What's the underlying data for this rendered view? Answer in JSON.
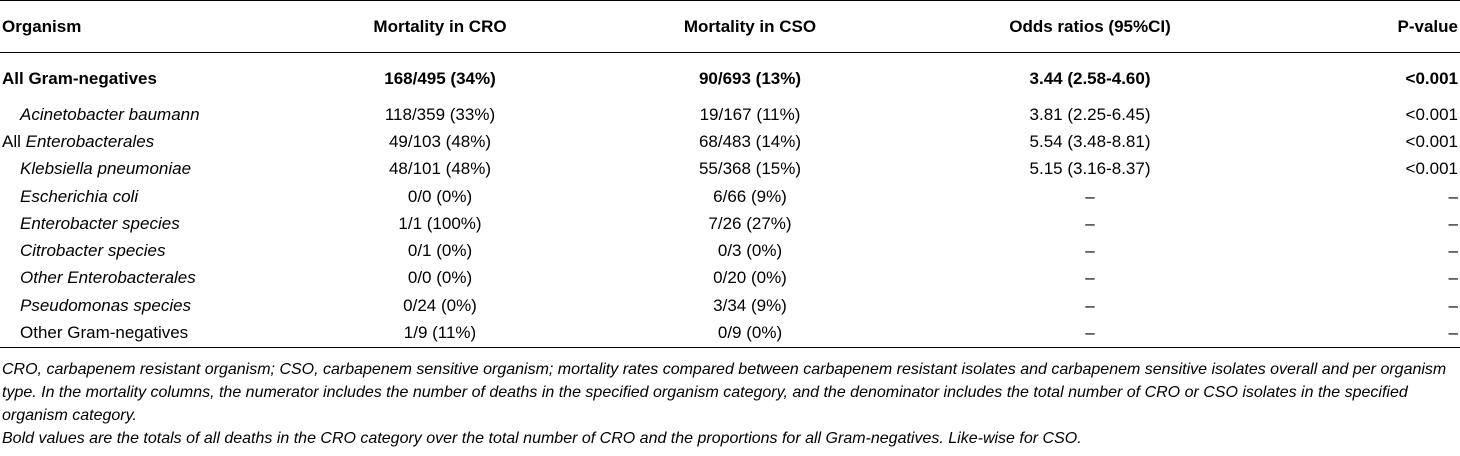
{
  "headers": [
    "Organism",
    "Mortality in CRO",
    "Mortality in CSO",
    "Odds ratios (95%CI)",
    "P-value"
  ],
  "rows": [
    {
      "pre": "",
      "organism": "All Gram-negatives",
      "cro": "168/495 (34%)",
      "cso": "90/693 (13%)",
      "or": "3.44 (2.58-4.60)",
      "p": "<0.001"
    },
    {
      "pre": "",
      "organism": "Acinetobacter baumann",
      "cro": "118/359 (33%)",
      "cso": "19/167 (11%)",
      "or": "3.81 (2.25-6.45)",
      "p": "<0.001"
    },
    {
      "pre": "All ",
      "organism": "Enterobacterales",
      "cro": "49/103 (48%)",
      "cso": "68/483 (14%)",
      "or": "5.54 (3.48-8.81)",
      "p": "<0.001"
    },
    {
      "pre": "",
      "organism": "Klebsiella pneumoniae",
      "cro": "48/101 (48%)",
      "cso": "55/368 (15%)",
      "or": "5.15 (3.16-8.37)",
      "p": "<0.001"
    },
    {
      "pre": "",
      "organism": "Escherichia coli",
      "cro": "0/0 (0%)",
      "cso": "6/66 (9%)",
      "or": "–",
      "p": "–"
    },
    {
      "pre": "",
      "organism": "Enterobacter species",
      "cro": "1/1 (100%)",
      "cso": "7/26 (27%)",
      "or": "–",
      "p": "–"
    },
    {
      "pre": "",
      "organism": "Citrobacter species",
      "cro": "0/1 (0%)",
      "cso": "0/3 (0%)",
      "or": "–",
      "p": "–"
    },
    {
      "pre": "",
      "organism": "Other Enterobacterales",
      "cro": "0/0 (0%)",
      "cso": "0/20 (0%)",
      "or": "–",
      "p": "–"
    },
    {
      "pre": "",
      "organism": "Pseudomonas species",
      "cro": "0/24 (0%)",
      "cso": "3/34 (9%)",
      "or": "–",
      "p": "–"
    },
    {
      "pre": "",
      "organism": "Other Gram-negatives",
      "cro": "1/9 (11%)",
      "cso": "0/9 (0%)",
      "or": "–",
      "p": "–"
    }
  ],
  "footnotes": [
    "CRO, carbapenem resistant organism; CSO, carbapenem sensitive organism; mortality rates compared between carbapenem resistant isolates and carbapenem sensitive isolates overall and per organism type. In the mortality columns, the numerator includes the number of deaths in the specified organism category, and the denominator includes the total number of CRO or CSO isolates in the specified organism category.",
    "Bold values are the totals of all deaths in the CRO category over the total number of CRO and the proportions for all Gram-negatives. Like-wise for CSO."
  ]
}
